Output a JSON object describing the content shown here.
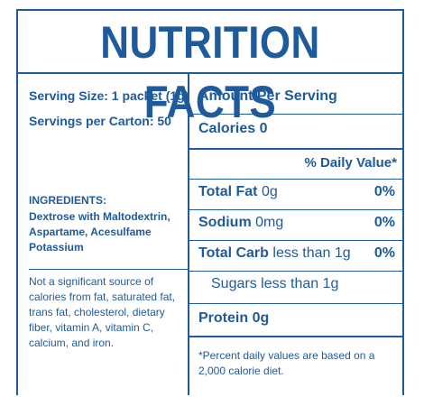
{
  "title": "NUTRITION FACTS",
  "serving_size": "Serving Size: 1 packet (1g)",
  "servings_per_carton": "Servings per Carton: 50",
  "ingredients_heading": "INGREDIENTS:",
  "ingredients": "Dextrose with Maltodextrin, Aspartame, Acesulfame Potassium",
  "disclaimer": "Not a significant source of calories from fat, saturated fat, trans fat, cholesterol, dietary fiber, vitamin A, vitamin C, calcium, and iron.",
  "amount_per_serving": "Amount Per Serving",
  "calories": {
    "label": "Calories",
    "value": "0"
  },
  "daily_value_header": "% Daily Value*",
  "nutrients": [
    {
      "label": "Total Fat",
      "amount": "0g",
      "dv": "0%"
    },
    {
      "label": "Sodium",
      "amount": "0mg",
      "dv": "0%"
    },
    {
      "label": "Total Carb",
      "amount": "less than 1g",
      "dv": "0%"
    },
    {
      "label": "Sugars",
      "amount": "less than 1g"
    }
  ],
  "protein": {
    "label": "Protein",
    "value": "0g"
  },
  "footnote": "*Percent daily values are based on a 2,000 calorie diet.",
  "colors": {
    "text": "#1f5a9a",
    "background": "#ffffff"
  }
}
